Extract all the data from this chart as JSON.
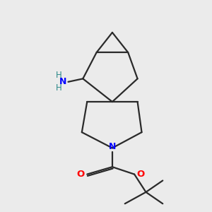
{
  "bg_color": "#ebebeb",
  "bond_color": "#2a2a2a",
  "N_color": "#0000ff",
  "O_color": "#ff0000",
  "NH2_color": "#2a8888",
  "lw": 1.6,
  "xlim": [
    0,
    10
  ],
  "ylim": [
    0,
    10
  ]
}
